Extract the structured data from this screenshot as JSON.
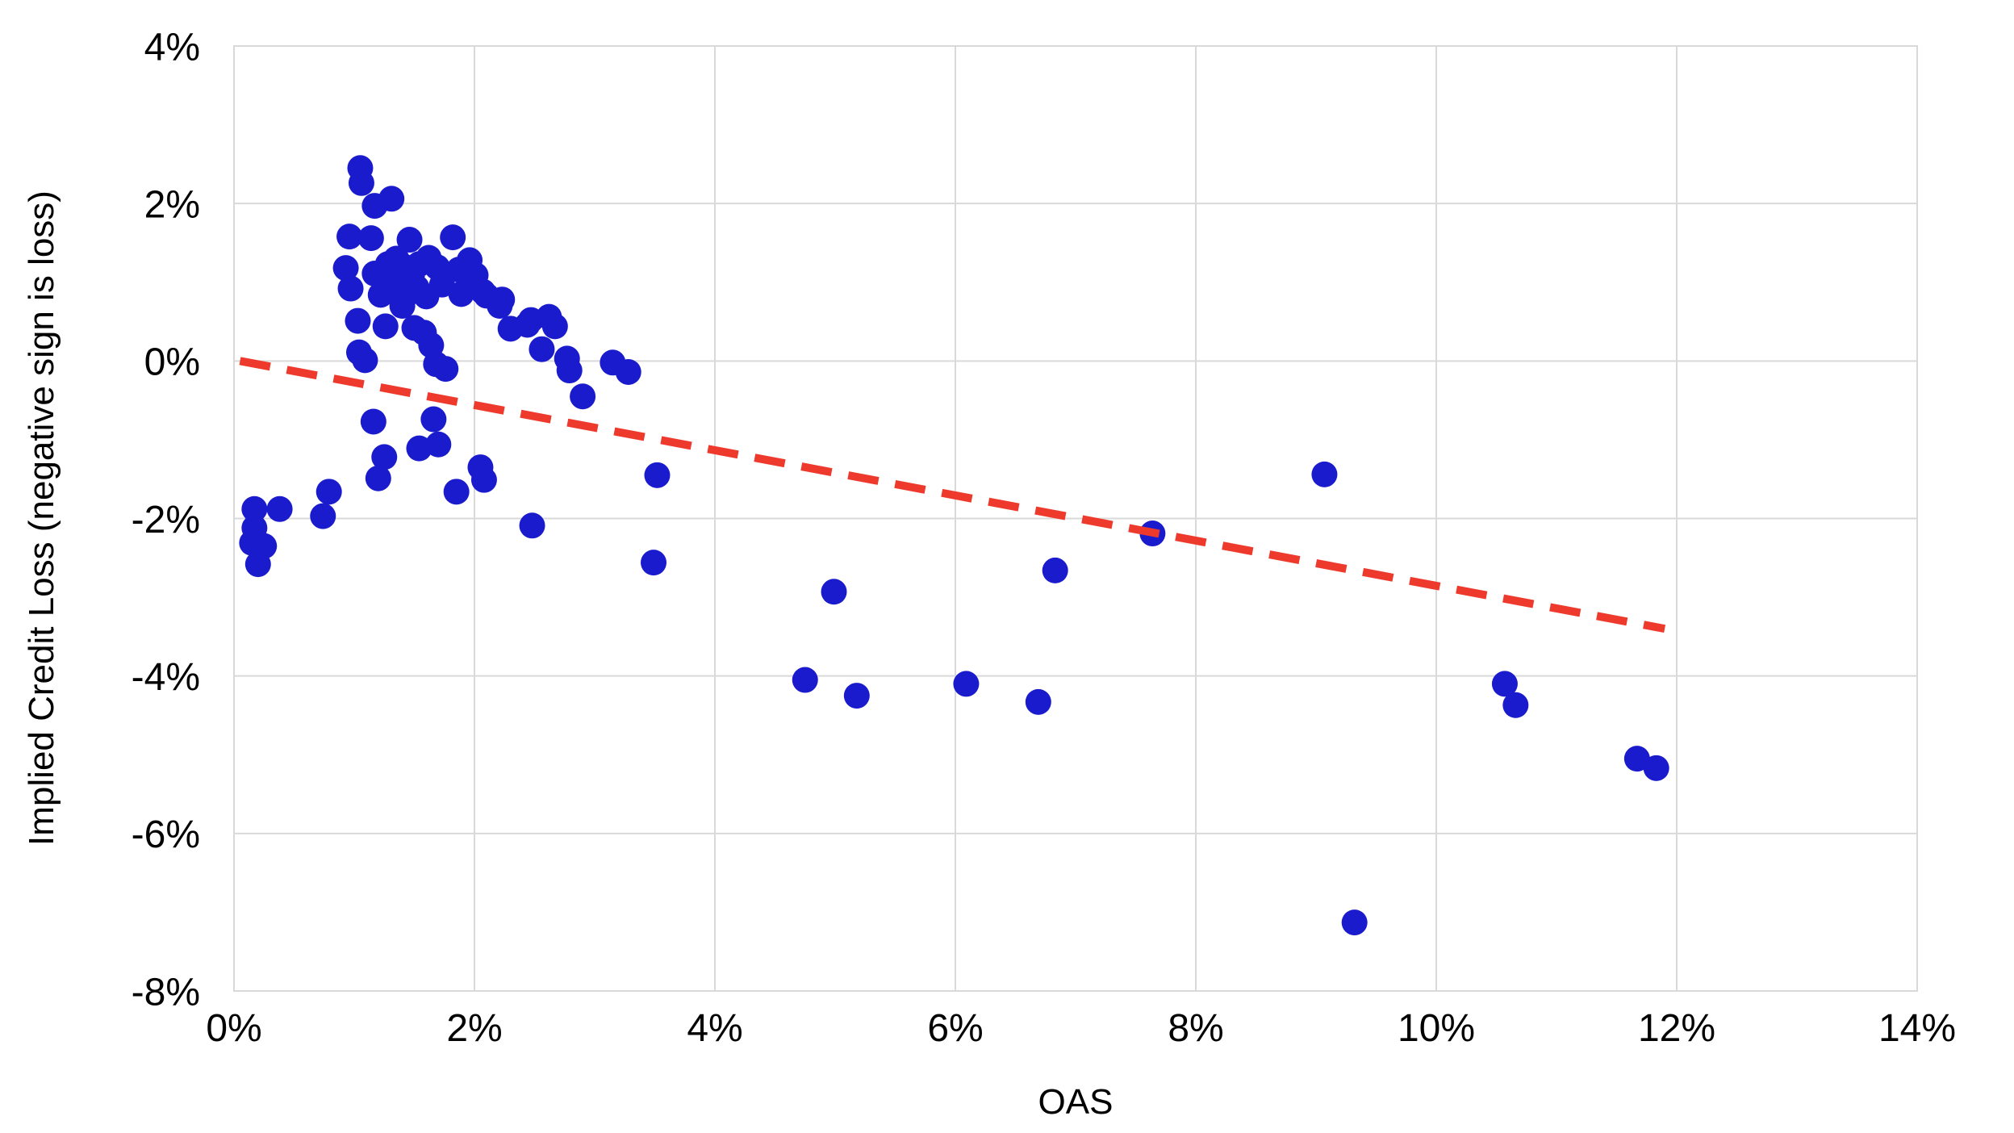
{
  "chart_data": {
    "type": "scatter",
    "title": "",
    "xlabel": "OAS",
    "ylabel": "Implied Credit Loss (negative sign is loss)",
    "xlim": [
      0,
      14
    ],
    "ylim": [
      -8,
      4
    ],
    "grid": true,
    "x_ticks": [
      {
        "value": 0,
        "label": "0%"
      },
      {
        "value": 2,
        "label": "2%"
      },
      {
        "value": 4,
        "label": "4%"
      },
      {
        "value": 6,
        "label": "6%"
      },
      {
        "value": 8,
        "label": "8%"
      },
      {
        "value": 10,
        "label": "10%"
      },
      {
        "value": 12,
        "label": "12%"
      },
      {
        "value": 14,
        "label": "14%"
      }
    ],
    "y_ticks": [
      {
        "value": 4,
        "label": "4%"
      },
      {
        "value": 2,
        "label": "2%"
      },
      {
        "value": 0,
        "label": "0%"
      },
      {
        "value": -2,
        "label": "-2%"
      },
      {
        "value": -4,
        "label": "-4%"
      },
      {
        "value": -6,
        "label": "-6%"
      },
      {
        "value": -8,
        "label": "-8%"
      }
    ],
    "series": [
      {
        "name": "implied-credit-loss-points",
        "type": "scatter",
        "color": "#1b1bce",
        "marker_radius": 16,
        "points": [
          [
            0.17,
            -1.88
          ],
          [
            0.38,
            -1.88
          ],
          [
            0.17,
            -2.12
          ],
          [
            0.15,
            -2.31
          ],
          [
            0.25,
            -2.35
          ],
          [
            0.2,
            -2.58
          ],
          [
            0.79,
            -1.66
          ],
          [
            0.74,
            -1.97
          ],
          [
            1.16,
            -0.77
          ],
          [
            1.66,
            -0.74
          ],
          [
            1.7,
            -1.06
          ],
          [
            1.54,
            -1.11
          ],
          [
            1.25,
            -1.22
          ],
          [
            1.2,
            -1.49
          ],
          [
            1.85,
            -1.66
          ],
          [
            2.05,
            -1.35
          ],
          [
            2.08,
            -1.51
          ],
          [
            2.48,
            -2.09
          ],
          [
            1.05,
            2.45
          ],
          [
            1.06,
            2.26
          ],
          [
            1.17,
            1.97
          ],
          [
            1.31,
            2.06
          ],
          [
            0.96,
            1.58
          ],
          [
            1.14,
            1.56
          ],
          [
            1.46,
            1.54
          ],
          [
            1.82,
            1.57
          ],
          [
            0.93,
            1.18
          ],
          [
            1.17,
            1.11
          ],
          [
            1.28,
            1.23
          ],
          [
            1.4,
            1.21
          ],
          [
            1.54,
            1.23
          ],
          [
            1.69,
            1.19
          ],
          [
            1.87,
            1.16
          ],
          [
            1.99,
            1.1
          ],
          [
            0.97,
            0.92
          ],
          [
            1.22,
            0.84
          ],
          [
            1.3,
            0.95
          ],
          [
            1.44,
            0.85
          ],
          [
            1.52,
            0.93
          ],
          [
            1.6,
            0.82
          ],
          [
            1.73,
            0.97
          ],
          [
            1.89,
            0.85
          ],
          [
            2.07,
            0.88
          ],
          [
            2.23,
            0.78
          ],
          [
            1.03,
            0.51
          ],
          [
            1.26,
            0.44
          ],
          [
            1.5,
            0.42
          ],
          [
            1.58,
            0.36
          ],
          [
            2.3,
            0.41
          ],
          [
            2.47,
            0.52
          ],
          [
            2.62,
            0.56
          ],
          [
            1.04,
            0.11
          ],
          [
            1.09,
            0.01
          ],
          [
            1.64,
            0.2
          ],
          [
            1.68,
            -0.04
          ],
          [
            1.76,
            -0.1
          ],
          [
            2.1,
            0.83
          ],
          [
            2.21,
            0.7
          ],
          [
            2.44,
            0.46
          ],
          [
            2.56,
            0.15
          ],
          [
            2.67,
            0.44
          ],
          [
            2.77,
            0.03
          ],
          [
            2.79,
            -0.12
          ],
          [
            2.9,
            -0.45
          ],
          [
            3.15,
            -0.02
          ],
          [
            3.28,
            -0.14
          ],
          [
            1.35,
            1.3
          ],
          [
            1.62,
            1.31
          ],
          [
            1.48,
            1.08
          ],
          [
            1.4,
            0.7
          ],
          [
            1.96,
            1.28
          ],
          [
            2.01,
            1.09
          ],
          [
            3.52,
            -1.45
          ],
          [
            3.49,
            -2.56
          ],
          [
            4.99,
            -2.93
          ],
          [
            4.75,
            -4.05
          ],
          [
            5.18,
            -4.25
          ],
          [
            6.09,
            -4.1
          ],
          [
            6.69,
            -4.33
          ],
          [
            6.83,
            -2.66
          ],
          [
            7.64,
            -2.19
          ],
          [
            9.07,
            -1.44
          ],
          [
            9.32,
            -7.13
          ],
          [
            10.57,
            -4.1
          ],
          [
            10.66,
            -4.37
          ],
          [
            11.67,
            -5.05
          ],
          [
            11.83,
            -5.17
          ]
        ]
      },
      {
        "name": "trendline",
        "type": "dashed-line",
        "color": "#ee3a2c",
        "stroke_width": 10,
        "dash": [
          38,
          21
        ],
        "points": [
          [
            0.05,
            0.0
          ],
          [
            11.9,
            -3.4
          ]
        ]
      }
    ],
    "grid_color": "#d9d9d9",
    "text_color": "#000000",
    "background_color": "#ffffff",
    "legend": "none"
  }
}
